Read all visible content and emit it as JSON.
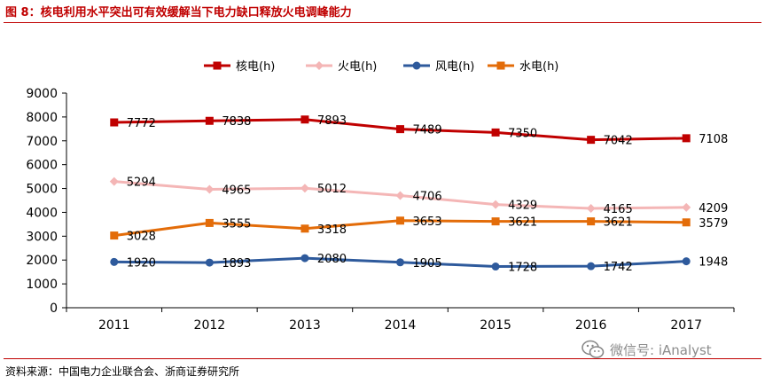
{
  "figure": {
    "title": "图 8：核电利用水平突出可有效缓解当下电力缺口释放火电调峰能力",
    "source": "资料来源：中国电力企业联合会、浙商证券研究所",
    "watermark": "微信号: iAnalyst"
  },
  "chart_data": {
    "type": "line",
    "title": "",
    "xlabel": "",
    "ylabel": "",
    "ylim": [
      0,
      9000
    ],
    "yticks": [
      0,
      1000,
      2000,
      3000,
      4000,
      5000,
      6000,
      7000,
      8000,
      9000
    ],
    "legend_position": "top",
    "categories": [
      "2011",
      "2012",
      "2013",
      "2014",
      "2015",
      "2016",
      "2017"
    ],
    "series": [
      {
        "name": "核电(h)",
        "color": "#c00000",
        "marker": "square",
        "values": [
          7772,
          7838,
          7893,
          7489,
          7350,
          7042,
          7108
        ]
      },
      {
        "name": "火电(h)",
        "color": "#f4b6b6",
        "marker": "diamond",
        "values": [
          5294,
          4965,
          5012,
          4706,
          4329,
          4165,
          4209
        ]
      },
      {
        "name": "风电(h)",
        "color": "#2e5a9c",
        "marker": "circle",
        "values": [
          1920,
          1893,
          2080,
          1905,
          1728,
          1742,
          1948
        ]
      },
      {
        "name": "水电(h)",
        "color": "#e36c09",
        "marker": "square",
        "values": [
          3028,
          3555,
          3318,
          3653,
          3621,
          3621,
          3579
        ]
      }
    ]
  }
}
